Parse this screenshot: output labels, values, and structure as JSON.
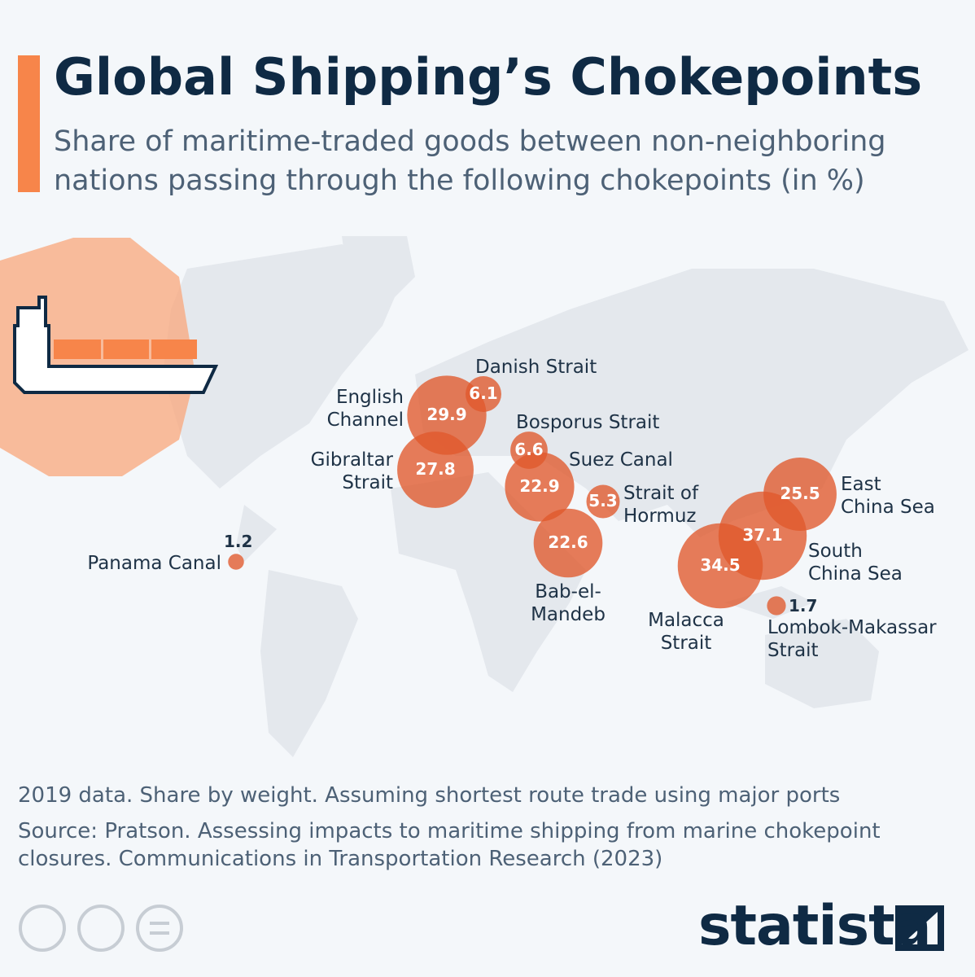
{
  "header": {
    "title": "Global Shipping’s Chokepoints",
    "subtitle": "Share of maritime-traded goods between non-neighboring nations passing through the following chokepoints (in %)"
  },
  "chart_data": {
    "type": "bubble-map",
    "color": "#e0592b",
    "categories": [
      "English\nChannel",
      "Danish Strait",
      "Gibraltar\nStrait",
      "Bosporus Strait",
      "Suez Canal",
      "Strait of\nHormuz",
      "Bab-el-\nMandeb",
      "East\nChina Sea",
      "South\nChina Sea",
      "Malacca\nStrait",
      "Lombok-Makassar\nStrait",
      "Panama Canal"
    ],
    "values": [
      29.9,
      6.1,
      27.8,
      6.6,
      22.9,
      5.3,
      22.6,
      25.5,
      37.1,
      34.5,
      1.7,
      1.2
    ]
  },
  "footer": {
    "note": "2019 data. Share by weight. Assuming shortest route trade using major ports",
    "source": "Source: Pratson. Assessing impacts to maritime shipping from marine chokepoint closures. Communications in Transportation Research (2023)",
    "brand": "statista"
  }
}
